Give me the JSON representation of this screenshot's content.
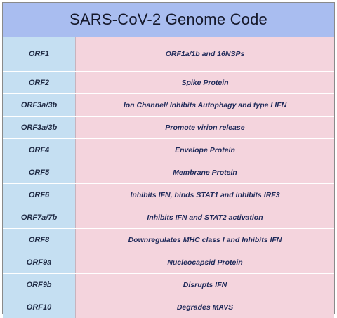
{
  "title": "SARS-CoV-2 Genome Code",
  "rows": [
    {
      "gene": "ORF1",
      "function": "ORF1a/1b and 16NSPs"
    },
    {
      "gene": "ORF2",
      "function": "Spike Protein"
    },
    {
      "gene": "ORF3a/3b",
      "function": "Ion Channel/ Inhibits Autophagy and type I IFN"
    },
    {
      "gene": "ORF3a/3b",
      "function": "Promote virion release"
    },
    {
      "gene": "ORF4",
      "function": "Envelope Protein"
    },
    {
      "gene": "ORF5",
      "function": "Membrane Protein"
    },
    {
      "gene": "ORF6",
      "function": "Inhibits IFN, binds STAT1 and inhibits  IRF3"
    },
    {
      "gene": "ORF7a/7b",
      "function": "Inhibits IFN and STAT2 activation"
    },
    {
      "gene": "ORF8",
      "function": "Downregulates MHC class I and Inhibits IFN"
    },
    {
      "gene": "ORF9a",
      "function": "Nucleocapsid Protein"
    },
    {
      "gene": "ORF9b",
      "function": "Disrupts IFN"
    },
    {
      "gene": "ORF10",
      "function": "Degrades MAVS"
    }
  ]
}
